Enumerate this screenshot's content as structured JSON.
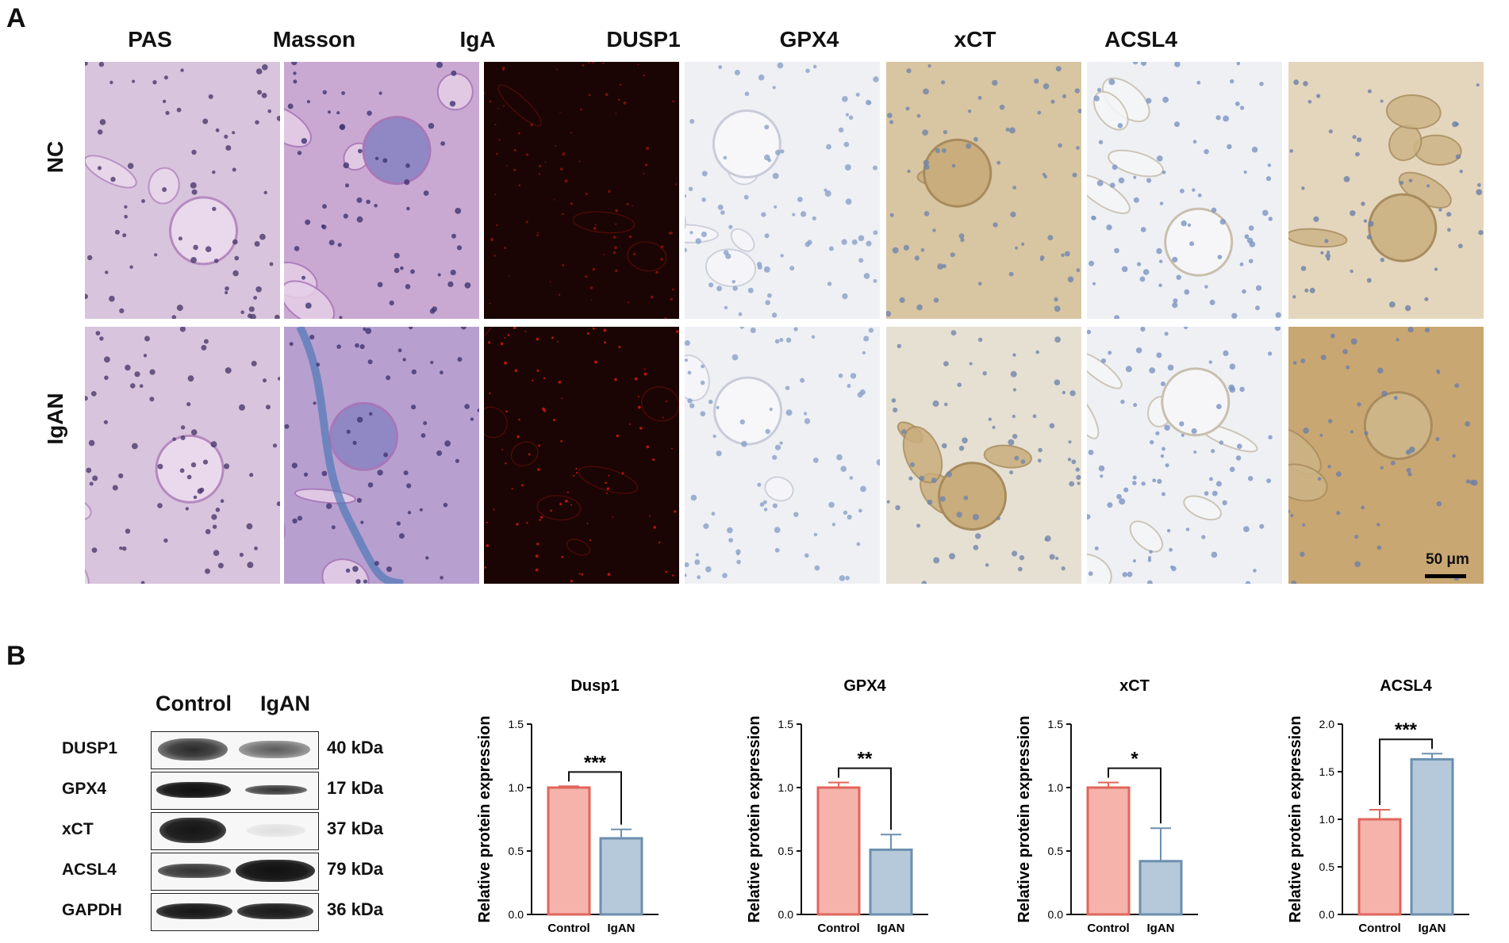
{
  "panel_a": {
    "letter": "A",
    "columns": [
      "PAS",
      "Masson",
      "IgA",
      "DUSP1",
      "GPX4",
      "xCT",
      "ACSL4"
    ],
    "rows": [
      "NC",
      "IgAN"
    ],
    "scale_bar": "50 μm"
  },
  "panel_b": {
    "letter": "B",
    "blot": {
      "lanes": [
        "Control",
        "IgAN"
      ],
      "proteins": [
        {
          "name": "DUSP1",
          "size": "40 kDa"
        },
        {
          "name": "GPX4",
          "size": "17 kDa"
        },
        {
          "name": "xCT",
          "size": "37 kDa"
        },
        {
          "name": "ACSL4",
          "size": "79 kDa"
        },
        {
          "name": "GAPDH",
          "size": "36 kDa"
        }
      ]
    }
  },
  "colors": {
    "control_fill": "#f5b3ab",
    "control_edge": "#e0665c",
    "igan_fill": "#b5c9db",
    "igan_edge": "#6d8fae",
    "pas_bg": "#d8c4dc",
    "masson_bg": "#c9a9d2",
    "iga_bg": "#1a0504",
    "ihc_bg": "#eef0f4",
    "dab": "#c9ad7d"
  },
  "chart_data": [
    {
      "type": "bar",
      "title": "Dusp1",
      "categories": [
        "Control",
        "IgAN"
      ],
      "values": [
        1.0,
        0.6
      ],
      "errors": [
        0.01,
        0.07
      ],
      "ylabel": "Relative protein expression",
      "ylim": [
        0,
        1.5
      ],
      "yticks": [
        "0.0",
        "0.5",
        "1.0",
        "1.5"
      ],
      "significance": "***"
    },
    {
      "type": "bar",
      "title": "GPX4",
      "categories": [
        "Control",
        "IgAN"
      ],
      "values": [
        1.0,
        0.51
      ],
      "errors": [
        0.04,
        0.12
      ],
      "ylabel": "Relative protein expression",
      "ylim": [
        0,
        1.5
      ],
      "yticks": [
        "0.0",
        "0.5",
        "1.0",
        "1.5"
      ],
      "significance": "**"
    },
    {
      "type": "bar",
      "title": "xCT",
      "categories": [
        "Control",
        "IgAN"
      ],
      "values": [
        1.0,
        0.42
      ],
      "errors": [
        0.04,
        0.26
      ],
      "ylabel": "Relative protein expression",
      "ylim": [
        0,
        1.5
      ],
      "yticks": [
        "0.0",
        "0.5",
        "1.0",
        "1.5"
      ],
      "significance": "*"
    },
    {
      "type": "bar",
      "title": "ACSL4",
      "categories": [
        "Control",
        "IgAN"
      ],
      "values": [
        1.0,
        1.63
      ],
      "errors": [
        0.1,
        0.06
      ],
      "ylabel": "Relative protein expression",
      "ylim": [
        0,
        2.0
      ],
      "yticks": [
        "0.0",
        "0.5",
        "1.0",
        "1.5",
        "2.0"
      ],
      "significance": "***"
    }
  ]
}
